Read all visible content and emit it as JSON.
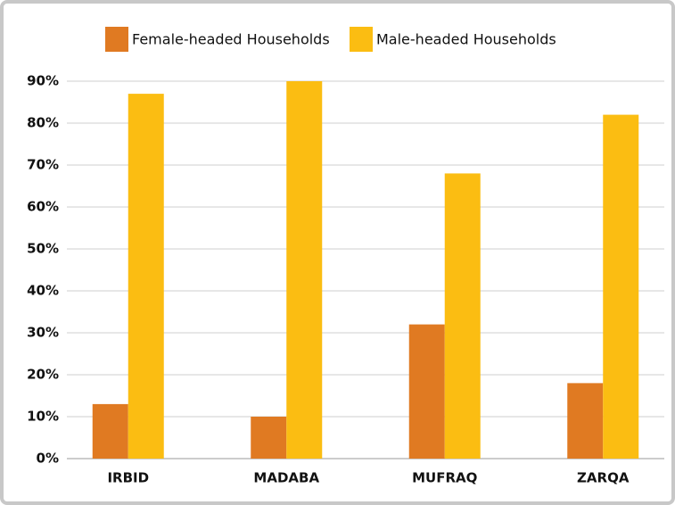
{
  "chart_data": {
    "type": "bar",
    "categories": [
      "IRBID",
      "MADABA",
      "MUFRAQ",
      "ZARQA"
    ],
    "series": [
      {
        "name": "Female-headed Households",
        "color": "#e07a22",
        "values": [
          13,
          10,
          32,
          18
        ]
      },
      {
        "name": "Male-headed Households",
        "color": "#fbbd12",
        "values": [
          87,
          90,
          68,
          82
        ]
      }
    ],
    "ylim": [
      0,
      90
    ],
    "yticks": [
      {
        "value": 0,
        "label": "0%"
      },
      {
        "value": 10,
        "label": "10%"
      },
      {
        "value": 20,
        "label": "20%"
      },
      {
        "value": 30,
        "label": "30%"
      },
      {
        "value": 40,
        "label": "40%"
      },
      {
        "value": 50,
        "label": "50%"
      },
      {
        "value": 60,
        "label": "60%"
      },
      {
        "value": 70,
        "label": "70%"
      },
      {
        "value": 80,
        "label": "80%"
      },
      {
        "value": 90,
        "label": "90%"
      }
    ],
    "grid": true,
    "legend": "top"
  }
}
